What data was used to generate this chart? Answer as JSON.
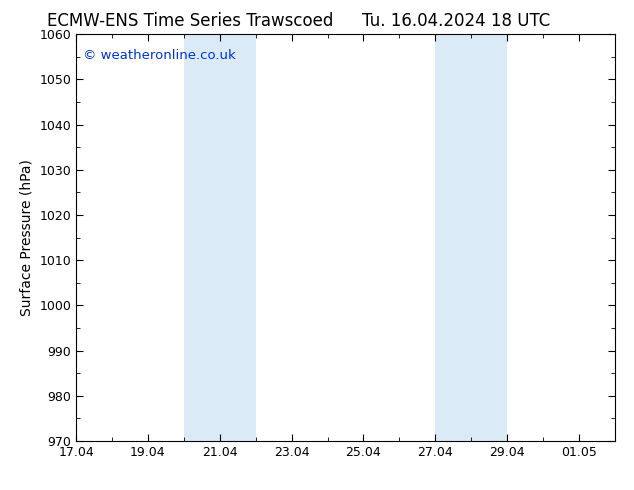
{
  "title_left": "ECMW-ENS Time Series Trawscoed",
  "title_right": "Tu. 16.04.2024 18 UTC",
  "ylabel": "Surface Pressure (hPa)",
  "ylim": [
    970,
    1060
  ],
  "yticks": [
    970,
    980,
    990,
    1000,
    1010,
    1020,
    1030,
    1040,
    1050,
    1060
  ],
  "xtick_labels": [
    "17.04",
    "19.04",
    "21.04",
    "23.04",
    "25.04",
    "27.04",
    "29.04",
    "01.05"
  ],
  "xtick_positions": [
    0,
    2,
    4,
    6,
    8,
    10,
    12,
    14
  ],
  "xlim": [
    0,
    15
  ],
  "shaded_bands": [
    {
      "start": 3.0,
      "end": 5.0
    },
    {
      "start": 10.0,
      "end": 12.0
    }
  ],
  "shade_color": "#daeaf7",
  "copyright_text": "© weatheronline.co.uk",
  "copyright_color": "#0033cc",
  "bg_color": "#ffffff",
  "plot_bg_color": "#ffffff",
  "title_fontsize": 12,
  "label_fontsize": 10,
  "tick_fontsize": 9,
  "copyright_fontsize": 9.5
}
